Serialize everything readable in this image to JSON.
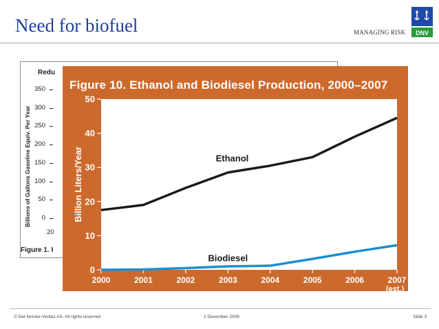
{
  "slide": {
    "title": "Need for biofuel",
    "tagline": "MANAGING RISK",
    "logo_text": "DNV"
  },
  "footer": {
    "copyright": "© Det Norske Veritas AS. All rights reserved",
    "date": "2 December 2009",
    "slide_number": "Slide 3"
  },
  "background_figure": {
    "title_visible": "Redu",
    "ylabel": "Billions of Gallons Gasoline Equiv. Per Year",
    "y_ticks": [
      "350",
      "300",
      "250",
      "200",
      "150",
      "100",
      "50",
      "0"
    ],
    "x_first_tick": "20",
    "caption_visible": "Figure 1. I"
  },
  "chart_data": {
    "type": "line",
    "title": "Figure 10. Ethanol and Biodiesel Production, 2000–2007",
    "ylabel": "Billion Liters/Year",
    "xlabel": "",
    "categories": [
      "2000",
      "2001",
      "2002",
      "2003",
      "2004",
      "2005",
      "2006",
      "2007"
    ],
    "x_extra_label": "(est.)",
    "y_ticks": [
      0,
      10,
      20,
      30,
      40,
      50
    ],
    "ylim": [
      0,
      50
    ],
    "grid": false,
    "series": [
      {
        "name": "Ethanol",
        "values": [
          17.5,
          19,
          24,
          28.5,
          30.5,
          33,
          39,
          44.5
        ],
        "color": "#1a1a1a"
      },
      {
        "name": "Biodiesel",
        "values": [
          0,
          0.1,
          0.5,
          1.0,
          1.2,
          3.2,
          5.3,
          7.2
        ],
        "color": "#1b8fd0"
      }
    ],
    "colors": {
      "frame": "#cc6a2d",
      "plot_bg": "#ffffff",
      "text": "#ffffff"
    }
  }
}
